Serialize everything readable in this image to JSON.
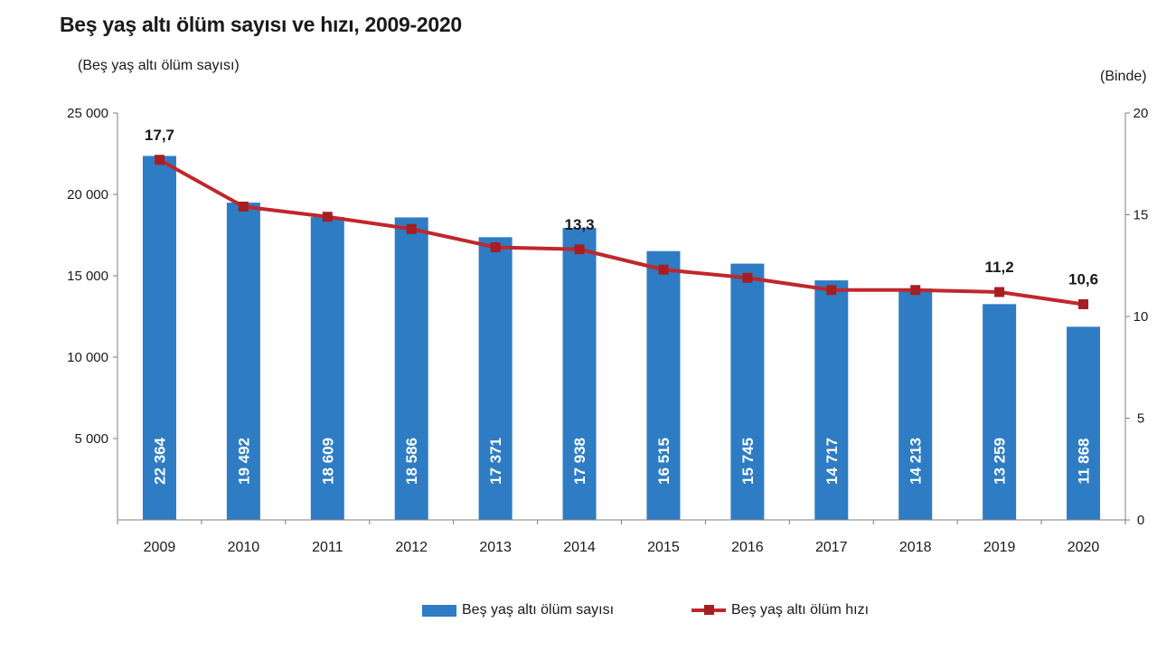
{
  "title": "Beş yaş altı ölüm sayısı ve hızı, 2009-2020",
  "chart_data": {
    "type": "bar+line",
    "categories": [
      "2009",
      "2010",
      "2011",
      "2012",
      "2013",
      "2014",
      "2015",
      "2016",
      "2017",
      "2018",
      "2019",
      "2020"
    ],
    "bar_series": {
      "name": "Beş yaş altı ölüm sayısı",
      "values": [
        22364,
        19492,
        18609,
        18586,
        17371,
        17938,
        16515,
        15745,
        14717,
        14213,
        13259,
        11868
      ],
      "labels": [
        "22 364",
        "19 492",
        "18 609",
        "18 586",
        "17 371",
        "17 938",
        "16 515",
        "15 745",
        "14 717",
        "14 213",
        "13 259",
        "11 868"
      ],
      "color": "#2e7cc4"
    },
    "line_series": {
      "name": "Beş yaş altı ölüm hızı",
      "values": [
        17.7,
        15.4,
        14.9,
        14.3,
        13.4,
        13.3,
        12.3,
        11.9,
        11.3,
        11.3,
        11.2,
        10.6
      ],
      "point_labels": [
        "17,7",
        "",
        "",
        "",
        "",
        "13,3",
        "",
        "",
        "",
        "",
        "11,2",
        "10,6"
      ],
      "color": "#c0272d",
      "marker_color": "#a61e22"
    },
    "y_left": {
      "label": "(Beş yaş altı ölüm sayısı)",
      "ylim": [
        0,
        25000
      ],
      "ticks": [
        5000,
        10000,
        15000,
        20000,
        25000
      ],
      "tick_labels": [
        "5 000",
        "10 000",
        "15 000",
        "20 000",
        "25 000"
      ]
    },
    "y_right": {
      "label": "(Binde)",
      "ylim": [
        0,
        20
      ],
      "ticks": [
        0,
        5,
        10,
        15,
        20
      ],
      "tick_labels": [
        "0",
        "5",
        "10",
        "15",
        "20"
      ]
    },
    "grid": false,
    "legend_position": "bottom"
  }
}
